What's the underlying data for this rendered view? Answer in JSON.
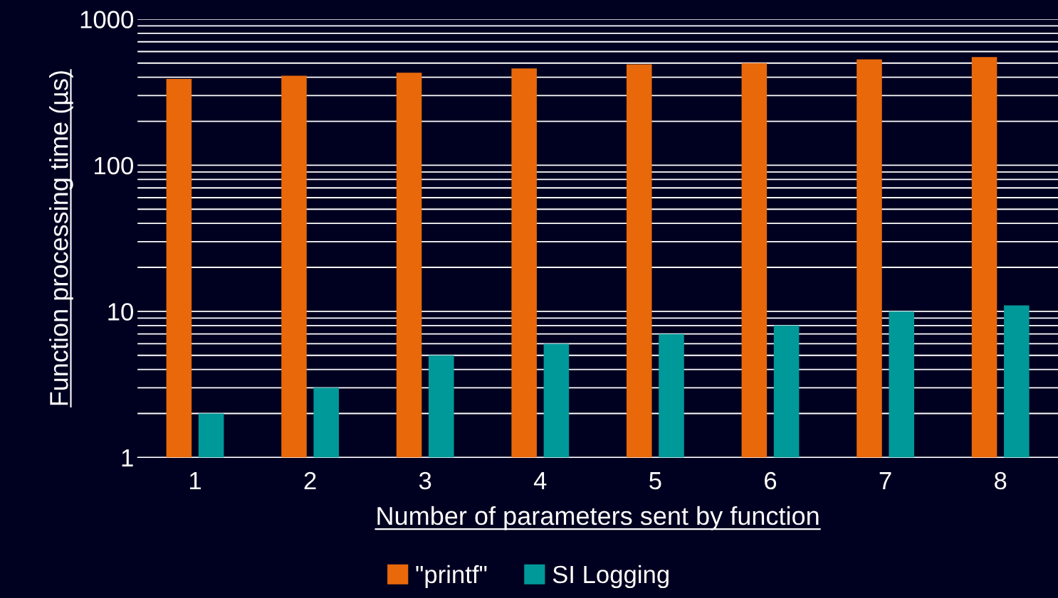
{
  "chart_data": {
    "type": "bar",
    "xlabel": "Number of parameters sent by function",
    "ylabel": "Function processing time (µs)",
    "categories": [
      "1",
      "2",
      "3",
      "4",
      "5",
      "6",
      "7",
      "8"
    ],
    "series": [
      {
        "name": "\"printf\"",
        "color": "#e8680a",
        "values": [
          390,
          410,
          430,
          460,
          490,
          500,
          530,
          550
        ]
      },
      {
        "name": "SI Logging",
        "color": "#009999",
        "values": [
          2,
          3,
          5,
          6,
          7,
          8,
          10,
          11
        ]
      }
    ],
    "log": "y",
    "ylim": [
      1,
      1000
    ],
    "yticks": [
      1,
      {
        "value": 2,
        "label": null
      },
      {
        "value": 3,
        "label": null
      },
      {
        "value": 4,
        "label": null
      },
      {
        "value": 5,
        "label": null
      },
      {
        "value": 6,
        "label": null
      },
      {
        "value": 7,
        "label": null
      },
      {
        "value": 8,
        "label": null
      },
      {
        "value": 9,
        "label": null
      },
      10,
      {
        "value": 20,
        "label": null
      },
      {
        "value": 30,
        "label": null
      },
      {
        "value": 40,
        "label": null
      },
      {
        "value": 50,
        "label": null
      },
      {
        "value": 60,
        "label": null
      },
      {
        "value": 70,
        "label": null
      },
      {
        "value": 80,
        "label": null
      },
      {
        "value": 90,
        "label": null
      },
      100,
      {
        "value": 200,
        "label": null
      },
      {
        "value": 300,
        "label": null
      },
      {
        "value": 400,
        "label": null
      },
      {
        "value": 500,
        "label": null
      },
      {
        "value": 600,
        "label": null
      },
      {
        "value": 700,
        "label": null
      },
      {
        "value": 800,
        "label": null
      },
      {
        "value": 900,
        "label": null
      },
      1000
    ],
    "grid": "y",
    "legend": "bottom"
  }
}
